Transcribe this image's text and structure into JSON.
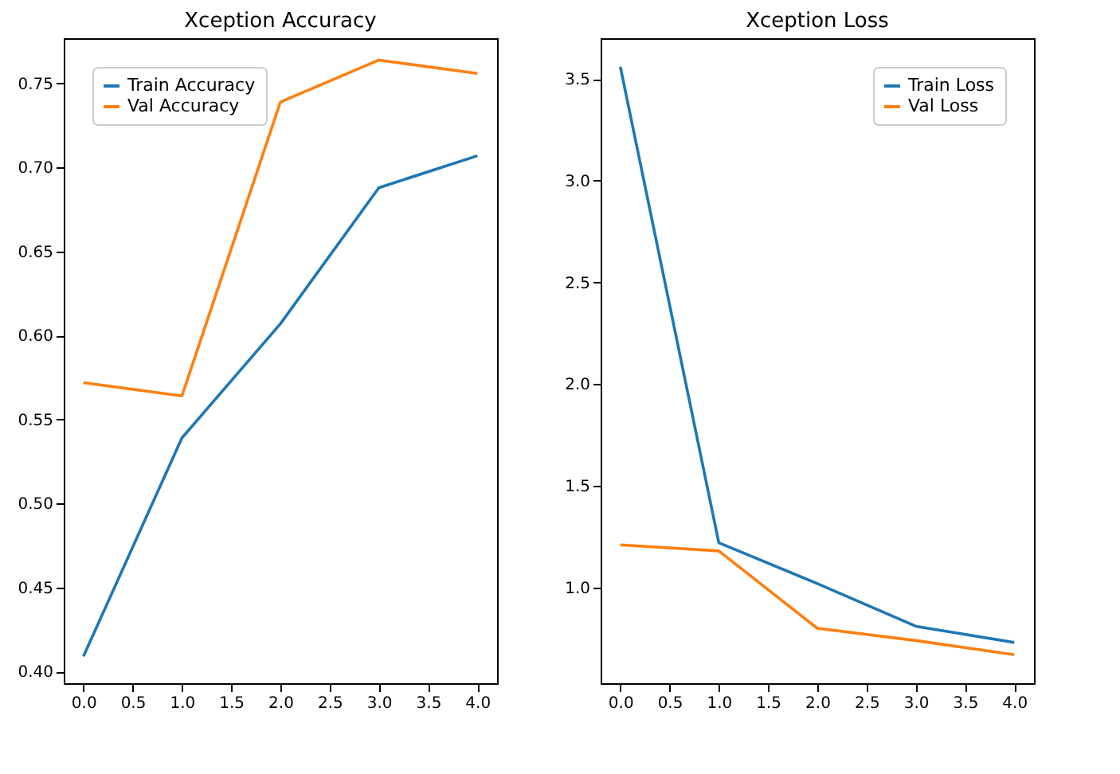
{
  "chart_data": [
    {
      "type": "line",
      "title": "Xception Accuracy",
      "x": [
        0,
        1,
        2,
        3,
        4
      ],
      "xlim": [
        -0.2,
        4.2
      ],
      "xticks": [
        {
          "value": 0,
          "label": "0.0"
        },
        0.5,
        {
          "value": 1,
          "label": "1.0"
        },
        1.5,
        {
          "value": 2,
          "label": "2.0"
        },
        2.5,
        {
          "value": 3,
          "label": "3.0"
        },
        3.5,
        {
          "value": 4,
          "label": "4.0"
        }
      ],
      "ylim": [
        0.393,
        0.777
      ],
      "yticks": [
        {
          "value": 0.4,
          "label": "0.40"
        },
        0.45,
        {
          "value": 0.5,
          "label": "0.50"
        },
        0.55,
        {
          "value": 0.6,
          "label": "0.60"
        },
        0.65,
        {
          "value": 0.7,
          "label": "0.70"
        },
        0.75
      ],
      "legend": "top left",
      "grid": false,
      "series": [
        {
          "name": "Train Accuracy",
          "color": "#1f77b4",
          "values": [
            0.409,
            0.539,
            0.607,
            0.688,
            0.707
          ]
        },
        {
          "name": "Val Accuracy",
          "color": "#ff7f0e",
          "values": [
            0.572,
            0.564,
            0.739,
            0.764,
            0.756
          ]
        }
      ]
    },
    {
      "type": "line",
      "title": "Xception Loss",
      "x": [
        0,
        1,
        2,
        3,
        4
      ],
      "xlim": [
        -0.2,
        4.2
      ],
      "xticks": [
        {
          "value": 0,
          "label": "0.0"
        },
        0.5,
        {
          "value": 1,
          "label": "1.0"
        },
        1.5,
        {
          "value": 2,
          "label": "2.0"
        },
        2.5,
        {
          "value": 3,
          "label": "3.0"
        },
        3.5,
        {
          "value": 4,
          "label": "4.0"
        }
      ],
      "ylim": [
        0.53,
        3.7
      ],
      "yticks": [
        {
          "value": 1,
          "label": "1.0"
        },
        1.5,
        {
          "value": 2,
          "label": "2.0"
        },
        2.5,
        {
          "value": 3,
          "label": "3.0"
        },
        3.5
      ],
      "legend": "top right",
      "grid": false,
      "series": [
        {
          "name": "Train Loss",
          "color": "#1f77b4",
          "values": [
            3.56,
            1.22,
            1.02,
            0.81,
            0.73
          ]
        },
        {
          "name": "Val Loss",
          "color": "#ff7f0e",
          "values": [
            1.21,
            1.18,
            0.8,
            0.74,
            0.67
          ]
        }
      ]
    }
  ]
}
